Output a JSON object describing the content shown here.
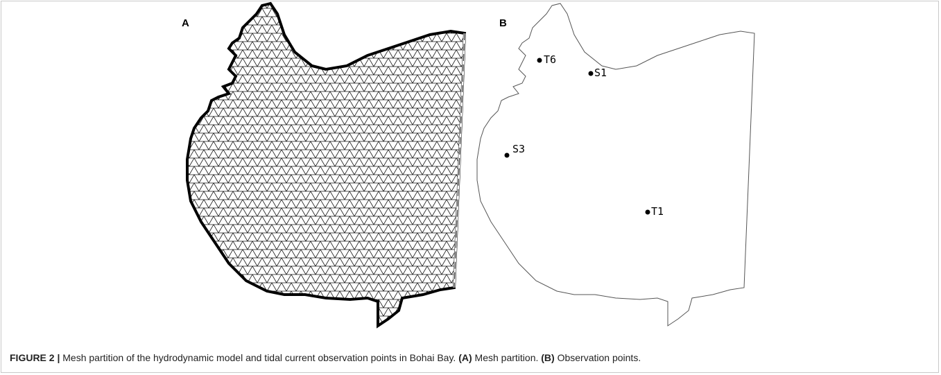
{
  "panels": [
    {
      "label": "A"
    },
    {
      "label": "B",
      "points": [
        {
          "label": "T6"
        },
        {
          "label": "S1"
        },
        {
          "label": "S3"
        },
        {
          "label": "T1"
        }
      ]
    }
  ],
  "caption": {
    "parts": [
      "FIGURE 2 |",
      " Mesh partition of the hydrodynamic model and tidal current observation points in Bohai Bay. ",
      "(A)",
      " Mesh partition. ",
      "(B)",
      " Observation points."
    ]
  }
}
